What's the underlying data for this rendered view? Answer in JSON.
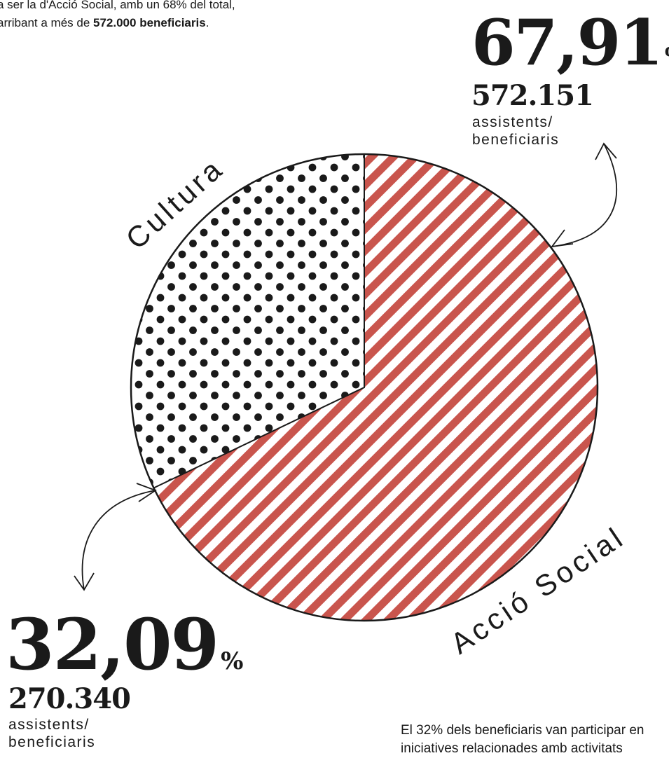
{
  "intro": {
    "line1": "a ser la d'Acció Social, amb un 68% del total,",
    "line2_prefix": "arribant a més de ",
    "line2_bold": "572.000 beneficiaris",
    "line2_suffix": "."
  },
  "chart_data": {
    "type": "pie",
    "slices": [
      {
        "label": "Acció Social",
        "value": 67.91,
        "percent_text": "67,91",
        "unit": "%",
        "count": "572.151",
        "caption_line1": "assistents/",
        "caption_line2": "beneficiaris",
        "color": "#c9554d",
        "pattern": "diagonal-stripes"
      },
      {
        "label": "Cultura",
        "value": 32.09,
        "percent_text": "32,09",
        "unit": "%",
        "count": "270.340",
        "caption_line1": "assistents/",
        "caption_line2": "beneficiaris",
        "color": "#1a1a1a",
        "pattern": "dots"
      }
    ]
  },
  "footnote": {
    "line1": "El 32% dels beneficiaris van participar en",
    "line2": "iniciatives relacionades amb activitats"
  }
}
